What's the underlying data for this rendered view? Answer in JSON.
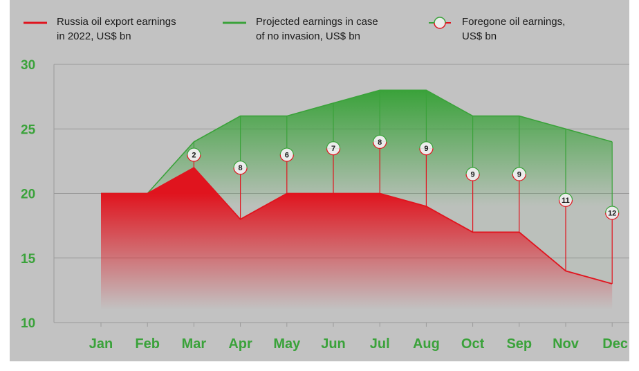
{
  "chart_data": {
    "type": "area",
    "categories": [
      "Jan",
      "Feb",
      "Mar",
      "Apr",
      "May",
      "Jun",
      "Jul",
      "Aug",
      "Oct",
      "Sep",
      "Nov",
      "Dec"
    ],
    "series": [
      {
        "name": "Russia oil export earnings in 2022, US$ bn",
        "values": [
          20,
          20,
          22,
          18,
          20,
          20,
          20,
          19,
          17,
          17,
          14,
          13
        ],
        "color": "#e0141e"
      },
      {
        "name": "Projected earnings in case of no invasion, US$ bn",
        "values": [
          20,
          20,
          24,
          26,
          26,
          27,
          28,
          28,
          26,
          26,
          25,
          24
        ],
        "color": "#3aa23a"
      },
      {
        "name": "Foregone oil earnings, US$ bn",
        "values": [
          null,
          null,
          2,
          8,
          6,
          7,
          8,
          9,
          9,
          9,
          11,
          12
        ],
        "color": "#3aa23a"
      }
    ],
    "legend": [
      {
        "line1": "Russia oil export earnings",
        "line2": "in 2022, US$ bn",
        "color": "#e0141e"
      },
      {
        "line1": "Projected earnings in case",
        "line2": "of no invasion, US$ bn",
        "color": "#3aa23a"
      },
      {
        "line1": "Foregone oil earnings,",
        "line2": "US$ bn",
        "color": "#3aa23a"
      }
    ],
    "legend_position": "top",
    "yticks": [
      10,
      15,
      20,
      25,
      30
    ],
    "ylim": [
      10,
      30
    ],
    "grid": true,
    "title": "",
    "xlabel": "",
    "ylabel": ""
  }
}
